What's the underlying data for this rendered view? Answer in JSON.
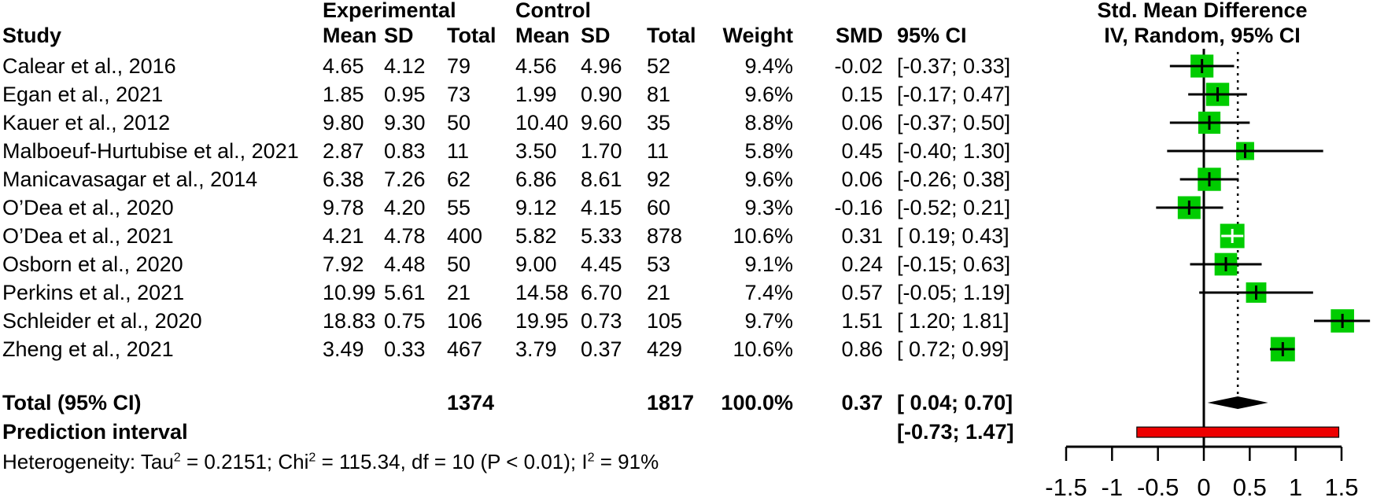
{
  "page": {
    "background": "#ffffff"
  },
  "table": {
    "group_headers": {
      "experimental": "Experimental",
      "control": "Control"
    },
    "headers": {
      "study": "Study",
      "mean": "Mean",
      "sd": "SD",
      "total": "Total",
      "mean2": "Mean",
      "sd2": "SD",
      "total2": "Total",
      "weight": "Weight",
      "smd": "SMD",
      "ci": "95% CI"
    }
  },
  "plot": {
    "title_line1": "Std. Mean Difference",
    "title_line2": "IV, Random, 95% CI"
  },
  "chart_data": {
    "type": "forest",
    "x_axis": {
      "ticks": [
        -1.5,
        -1,
        -0.5,
        0,
        0.5,
        1,
        1.5
      ],
      "tick_labels": [
        "-1.5",
        "-1",
        "-0.5",
        "0",
        "0.5",
        "1",
        "1.5"
      ],
      "xlim": [
        -1.5,
        1.5
      ]
    },
    "zero_line_x": 0,
    "pooled_dotted_line_x": 0.37,
    "studies": [
      {
        "label": "Calear et al., 2016",
        "exp_mean": "4.65",
        "exp_sd": "4.12",
        "exp_total": "79",
        "ctrl_mean": "4.56",
        "ctrl_sd": "4.96",
        "ctrl_total": "52",
        "weight": "9.4%",
        "weight_pct": 9.4,
        "smd": -0.02,
        "smd_text": "-0.02",
        "ci_low": -0.37,
        "ci_high": 0.33,
        "ci_text": "[-0.37; 0.33]"
      },
      {
        "label": "Egan et al., 2021",
        "exp_mean": "1.85",
        "exp_sd": "0.95",
        "exp_total": "73",
        "ctrl_mean": "1.99",
        "ctrl_sd": "0.90",
        "ctrl_total": "81",
        "weight": "9.6%",
        "weight_pct": 9.6,
        "smd": 0.15,
        "smd_text": "0.15",
        "ci_low": -0.17,
        "ci_high": 0.47,
        "ci_text": "[-0.17; 0.47]"
      },
      {
        "label": "Kauer et al., 2012",
        "exp_mean": "9.80",
        "exp_sd": "9.30",
        "exp_total": "50",
        "ctrl_mean": "10.40",
        "ctrl_sd": "9.60",
        "ctrl_total": "35",
        "weight": "8.8%",
        "weight_pct": 8.8,
        "smd": 0.06,
        "smd_text": "0.06",
        "ci_low": -0.37,
        "ci_high": 0.5,
        "ci_text": "[-0.37; 0.50]"
      },
      {
        "label": "Malboeuf-Hurtubise et al., 2021",
        "exp_mean": "2.87",
        "exp_sd": "0.83",
        "exp_total": "11",
        "ctrl_mean": "3.50",
        "ctrl_sd": "1.70",
        "ctrl_total": "11",
        "weight": "5.8%",
        "weight_pct": 5.8,
        "smd": 0.45,
        "smd_text": "0.45",
        "ci_low": -0.4,
        "ci_high": 1.3,
        "ci_text": "[-0.40; 1.30]"
      },
      {
        "label": "Manicavasagar et al., 2014",
        "exp_mean": "6.38",
        "exp_sd": "7.26",
        "exp_total": "62",
        "ctrl_mean": "6.86",
        "ctrl_sd": "8.61",
        "ctrl_total": "92",
        "weight": "9.6%",
        "weight_pct": 9.6,
        "smd": 0.06,
        "smd_text": "0.06",
        "ci_low": -0.26,
        "ci_high": 0.38,
        "ci_text": "[-0.26; 0.38]"
      },
      {
        "label": "O’Dea et al., 2020",
        "exp_mean": "9.78",
        "exp_sd": "4.20",
        "exp_total": "55",
        "ctrl_mean": "9.12",
        "ctrl_sd": "4.15",
        "ctrl_total": "60",
        "weight": "9.3%",
        "weight_pct": 9.3,
        "smd": -0.16,
        "smd_text": "-0.16",
        "ci_low": -0.52,
        "ci_high": 0.21,
        "ci_text": "[-0.52; 0.21]"
      },
      {
        "label": "O’Dea et al., 2021",
        "exp_mean": "4.21",
        "exp_sd": "4.78",
        "exp_total": "400",
        "ctrl_mean": "5.82",
        "ctrl_sd": "5.33",
        "ctrl_total": "878",
        "weight": "10.6%",
        "weight_pct": 10.6,
        "smd": 0.31,
        "smd_text": "0.31",
        "ci_low": 0.19,
        "ci_high": 0.43,
        "ci_text": "[ 0.19; 0.43]"
      },
      {
        "label": "Osborn et al., 2020",
        "exp_mean": "7.92",
        "exp_sd": "4.48",
        "exp_total": "50",
        "ctrl_mean": "9.00",
        "ctrl_sd": "4.45",
        "ctrl_total": "53",
        "weight": "9.1%",
        "weight_pct": 9.1,
        "smd": 0.24,
        "smd_text": "0.24",
        "ci_low": -0.15,
        "ci_high": 0.63,
        "ci_text": "[-0.15; 0.63]"
      },
      {
        "label": "Perkins et al., 2021",
        "exp_mean": "10.99",
        "exp_sd": "5.61",
        "exp_total": "21",
        "ctrl_mean": "14.58",
        "ctrl_sd": "6.70",
        "ctrl_total": "21",
        "weight": "7.4%",
        "weight_pct": 7.4,
        "smd": 0.57,
        "smd_text": "0.57",
        "ci_low": -0.05,
        "ci_high": 1.19,
        "ci_text": "[-0.05; 1.19]"
      },
      {
        "label": "Schleider et al., 2020",
        "exp_mean": "18.83",
        "exp_sd": "0.75",
        "exp_total": "106",
        "ctrl_mean": "19.95",
        "ctrl_sd": "0.73",
        "ctrl_total": "105",
        "weight": "9.7%",
        "weight_pct": 9.7,
        "smd": 1.51,
        "smd_text": "1.51",
        "ci_low": 1.2,
        "ci_high": 1.81,
        "ci_text": "[ 1.20; 1.81]"
      },
      {
        "label": "Zheng et al., 2021",
        "exp_mean": "3.49",
        "exp_sd": "0.33",
        "exp_total": "467",
        "ctrl_mean": "3.79",
        "ctrl_sd": "0.37",
        "ctrl_total": "429",
        "weight": "10.6%",
        "weight_pct": 10.6,
        "smd": 0.86,
        "smd_text": "0.86",
        "ci_low": 0.72,
        "ci_high": 0.99,
        "ci_text": "[ 0.72; 0.99]"
      }
    ],
    "total": {
      "label": "Total (95% CI)",
      "exp_total": "1374",
      "ctrl_total": "1817",
      "weight": "100.0%",
      "smd": 0.37,
      "smd_text": "0.37",
      "ci_low": 0.04,
      "ci_high": 0.7,
      "ci_text": "[ 0.04; 0.70]"
    },
    "prediction": {
      "label": "Prediction interval",
      "ci_low": -0.73,
      "ci_high": 1.47,
      "ci_text": "[-0.73; 1.47]"
    },
    "heterogeneity_segments": [
      {
        "t": "Heterogeneity: Tau"
      },
      {
        "t": "2",
        "sup": true
      },
      {
        "t": " = 0.2151; Chi"
      },
      {
        "t": "2",
        "sup": true
      },
      {
        "t": " = 115.34, df = 10 (P < 0.01); I"
      },
      {
        "t": "2",
        "sup": true
      },
      {
        "t": " = 91%"
      }
    ],
    "colors": {
      "square": "#00CC00",
      "prediction_bar": "#EE0000",
      "diamond": "#000000",
      "line": "#000000"
    }
  }
}
